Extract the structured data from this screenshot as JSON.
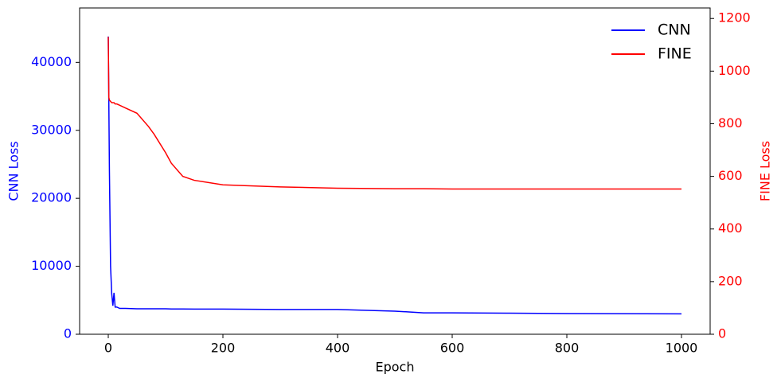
{
  "chart_data": {
    "type": "line",
    "x_label": "Epoch",
    "y_label": "CNN Loss",
    "y2_label": "FINE Loss",
    "x": [
      0,
      1,
      2,
      4,
      6,
      8,
      10,
      12,
      15,
      20,
      30,
      50,
      70,
      80,
      100,
      110,
      130,
      150,
      200,
      300,
      400,
      500,
      550,
      600,
      700,
      800,
      1000
    ],
    "series": [
      {
        "name": "CNN",
        "color": "#0000ff",
        "axis": "y",
        "values": [
          43800,
          34000,
          24000,
          10000,
          6000,
          4200,
          6100,
          4000,
          4000,
          3800,
          3800,
          3750,
          3750,
          3750,
          3750,
          3720,
          3720,
          3700,
          3700,
          3650,
          3650,
          3400,
          3150,
          3150,
          3100,
          3050,
          3000
        ]
      },
      {
        "name": "FINE",
        "color": "#ff0000",
        "axis": "y2",
        "values": [
          1130,
          900,
          890,
          885,
          880,
          880,
          880,
          875,
          875,
          870,
          860,
          840,
          790,
          760,
          690,
          650,
          600,
          585,
          568,
          560,
          555,
          553,
          553,
          552,
          552,
          552,
          552
        ]
      }
    ],
    "xlim": [
      -50,
      1050
    ],
    "xticks": [
      0,
      200,
      400,
      600,
      800,
      1000
    ],
    "ylim": [
      0,
      48000
    ],
    "yticks": [
      0,
      10000,
      20000,
      30000,
      40000
    ],
    "y2lim": [
      0,
      1240
    ],
    "y2ticks": [
      0,
      200,
      400,
      600,
      800,
      1000,
      1200
    ],
    "legend": "upper-right"
  }
}
